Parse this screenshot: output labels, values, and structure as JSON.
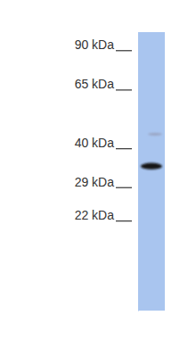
{
  "chart_data": {
    "type": "blot",
    "values": [
      33,
      43
    ],
    "colors": [
      "#151515",
      "#9aa6c4"
    ],
    "color": "#a9c5ef",
    "log": "y",
    "ylim": [
      10,
      100
    ],
    "yticks": [
      {
        "value": 90,
        "label": "90 kDa"
      },
      {
        "value": 65,
        "label": "65 kDa"
      },
      {
        "value": 40,
        "label": "40 kDa"
      },
      {
        "value": 29,
        "label": "29 kDa"
      },
      {
        "value": 22,
        "label": "22 kDa"
      }
    ],
    "grid": false
  }
}
